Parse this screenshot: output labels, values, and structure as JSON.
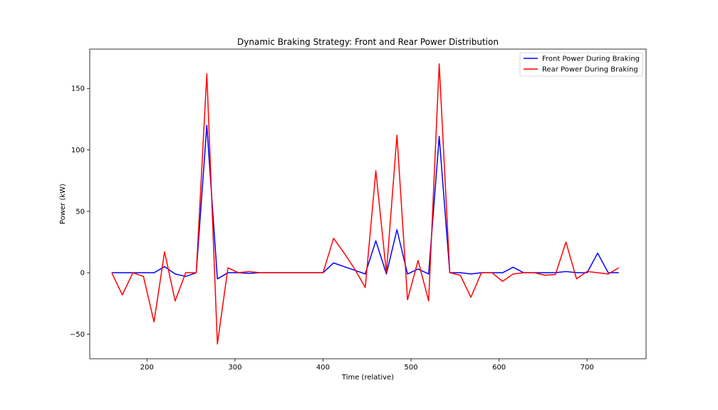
{
  "chart_data": {
    "type": "line",
    "title": "Dynamic Braking Strategy: Front and Rear Power Distribution",
    "xlabel": "Time (relative)",
    "ylabel": "Power (kW)",
    "xlim": [
      135,
      767
    ],
    "ylim": [
      -70,
      182
    ],
    "xticks": [
      200,
      300,
      400,
      500,
      600,
      700
    ],
    "yticks": [
      -50,
      0,
      50,
      100,
      150
    ],
    "ytick_labels": [
      "−50",
      "0",
      "50",
      "100",
      "150"
    ],
    "grid": false,
    "legend_position": "top-right",
    "series": [
      {
        "name": "Front Power During Braking",
        "color": "#0000ff",
        "x": [
          160,
          172,
          184,
          196,
          208,
          220,
          232,
          244,
          256,
          268,
          280,
          292,
          304,
          316,
          328,
          340,
          352,
          364,
          376,
          388,
          400,
          412,
          424,
          436,
          448,
          460,
          472,
          484,
          496,
          508,
          520,
          532,
          544,
          556,
          568,
          580,
          592,
          604,
          616,
          628,
          640,
          652,
          664,
          676,
          688,
          700,
          712,
          724,
          736
        ],
        "y": [
          0,
          0,
          0,
          0,
          0,
          5,
          -1,
          -3,
          0,
          120,
          -5,
          0,
          0,
          -0.5,
          0,
          0,
          0,
          0,
          0,
          0,
          0,
          8,
          5,
          2,
          -1,
          26,
          -1,
          35,
          -1,
          3,
          -1,
          111,
          0,
          0,
          -1,
          0,
          0,
          0,
          4.5,
          0,
          0,
          0,
          0,
          1,
          0,
          0,
          16,
          0,
          0
        ]
      },
      {
        "name": "Rear Power During Braking",
        "color": "#ff0000",
        "x": [
          160,
          172,
          184,
          196,
          208,
          220,
          232,
          244,
          256,
          268,
          280,
          292,
          304,
          316,
          328,
          340,
          352,
          364,
          376,
          388,
          400,
          412,
          424,
          436,
          448,
          460,
          472,
          484,
          496,
          508,
          520,
          532,
          544,
          556,
          568,
          580,
          592,
          604,
          616,
          628,
          640,
          652,
          664,
          676,
          688,
          700,
          712,
          724,
          736
        ],
        "y": [
          0,
          -18,
          0,
          -3,
          -40,
          17,
          -23,
          0,
          0,
          162,
          -58,
          4,
          0,
          1,
          0,
          0,
          0,
          0,
          0,
          0,
          0,
          28,
          16,
          3,
          -12,
          83,
          0,
          112,
          -22,
          10,
          -23,
          170,
          0,
          -2,
          -20,
          0,
          0,
          -7,
          -1,
          0,
          0,
          -2,
          -1.5,
          25,
          -5,
          1,
          0,
          -1,
          4
        ]
      }
    ]
  }
}
